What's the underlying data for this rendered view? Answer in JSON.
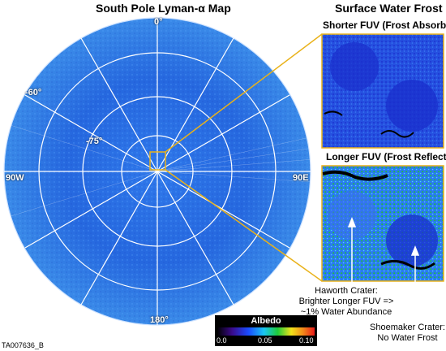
{
  "main_map": {
    "title": "South Pole Lyman-α Map",
    "labels": {
      "top": "0°",
      "bottom": "180°",
      "left": "90W",
      "right": "90E",
      "ring_outer": "-60°",
      "ring_inner": "-75°"
    }
  },
  "inset": {
    "title": "Surface Water Frost",
    "panel_top_label": "Shorter FUV (Frost Absorbs)",
    "panel_bottom_label": "Longer FUV (Frost Reflects)"
  },
  "annotations": {
    "haworth": [
      "Haworth Crater:",
      "Brighter Longer FUV =>",
      "~1% Water Abundance"
    ],
    "shoemaker": [
      "Shoemaker Crater:",
      "No Water Frost"
    ]
  },
  "colorbar": {
    "title": "Albedo",
    "ticks": [
      "0.0",
      "0.05",
      "0.10"
    ],
    "range": [
      0.0,
      0.1
    ]
  },
  "image_id": "TA007636_B",
  "colors": {
    "leader": "#e9b21a",
    "map_base": "#2a6fe0",
    "frost_dark": "#1a2ecc",
    "frost_bright": "#1fbf3a"
  }
}
